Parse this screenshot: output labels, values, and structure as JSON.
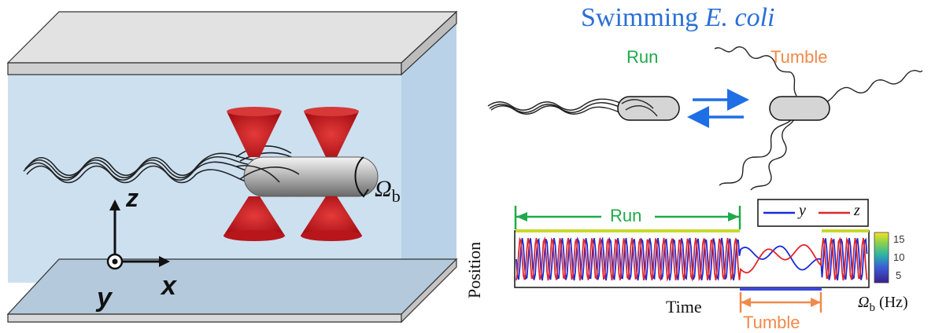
{
  "title": {
    "prefix": "Swimming ",
    "species": "E. coli"
  },
  "states": {
    "run": "Run",
    "tumble": "Tumble"
  },
  "axes3d": {
    "z": "z",
    "x": "x",
    "y": "y"
  },
  "rotation_label": {
    "symbol": "Ω",
    "subscript": "b"
  },
  "plot": {
    "ylabel": "Position",
    "xlabel": "Time",
    "run_label": "Run",
    "tumble_label": "Tumble",
    "legend": [
      "y",
      "z"
    ],
    "colorbar": {
      "ticks": [
        "15",
        "10",
        "5"
      ],
      "symbol": "Ω",
      "subscript": "b",
      "unit": " (Hz)"
    }
  },
  "colors": {
    "title": "#2a6fd6",
    "run": "#1faa4a",
    "tumble": "#ef8a4a",
    "y_series": "#1a2ad8",
    "z_series": "#e0262b",
    "trap": "#c0141a"
  }
}
